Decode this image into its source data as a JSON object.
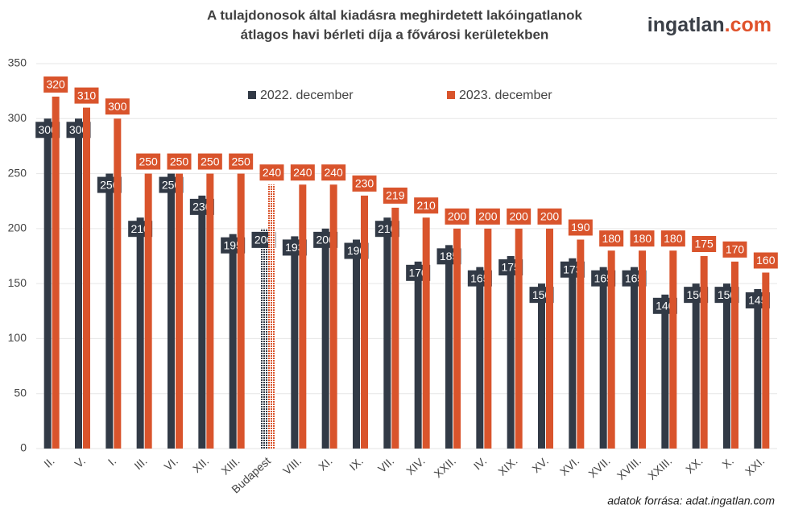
{
  "chart_data": {
    "type": "bar",
    "title": [
      "A tulajdonosok által kiadásra meghirdetett lakóingatlanok",
      "átlagos havi bérleti díja a fővárosi kerületekben"
    ],
    "logo": {
      "name": "ingatlan",
      "suffix": ".com"
    },
    "source": "adatok forrása: adat.ingatlan.com",
    "categories": [
      "II.",
      "V.",
      "I.",
      "III.",
      "VI.",
      "XII.",
      "XIII.",
      "Budapest",
      "VIII.",
      "XI.",
      "IX.",
      "VII.",
      "XIV.",
      "XXII.",
      "IV.",
      "XIX.",
      "XV.",
      "XVI.",
      "XVII.",
      "XVIII.",
      "XXIII.",
      "XX.",
      "X.",
      "XXI."
    ],
    "series": [
      {
        "name": "2022. december",
        "color": "#323a46",
        "values": [
          300,
          300,
          250,
          210,
          250,
          230,
          195,
          200,
          193,
          200,
          190,
          210,
          170,
          185,
          165,
          175,
          150,
          173,
          165,
          165,
          140,
          150,
          150,
          145
        ]
      },
      {
        "name": "2023. december",
        "color": "#d9542c",
        "values": [
          320,
          310,
          300,
          250,
          250,
          250,
          250,
          240,
          240,
          240,
          230,
          219,
          210,
          200,
          200,
          200,
          200,
          190,
          180,
          180,
          180,
          175,
          170,
          160
        ]
      }
    ],
    "hatched_index": 7,
    "ylim": [
      0,
      350
    ],
    "yticks": [
      0,
      50,
      100,
      150,
      200,
      250,
      300,
      350
    ],
    "grid": true
  }
}
